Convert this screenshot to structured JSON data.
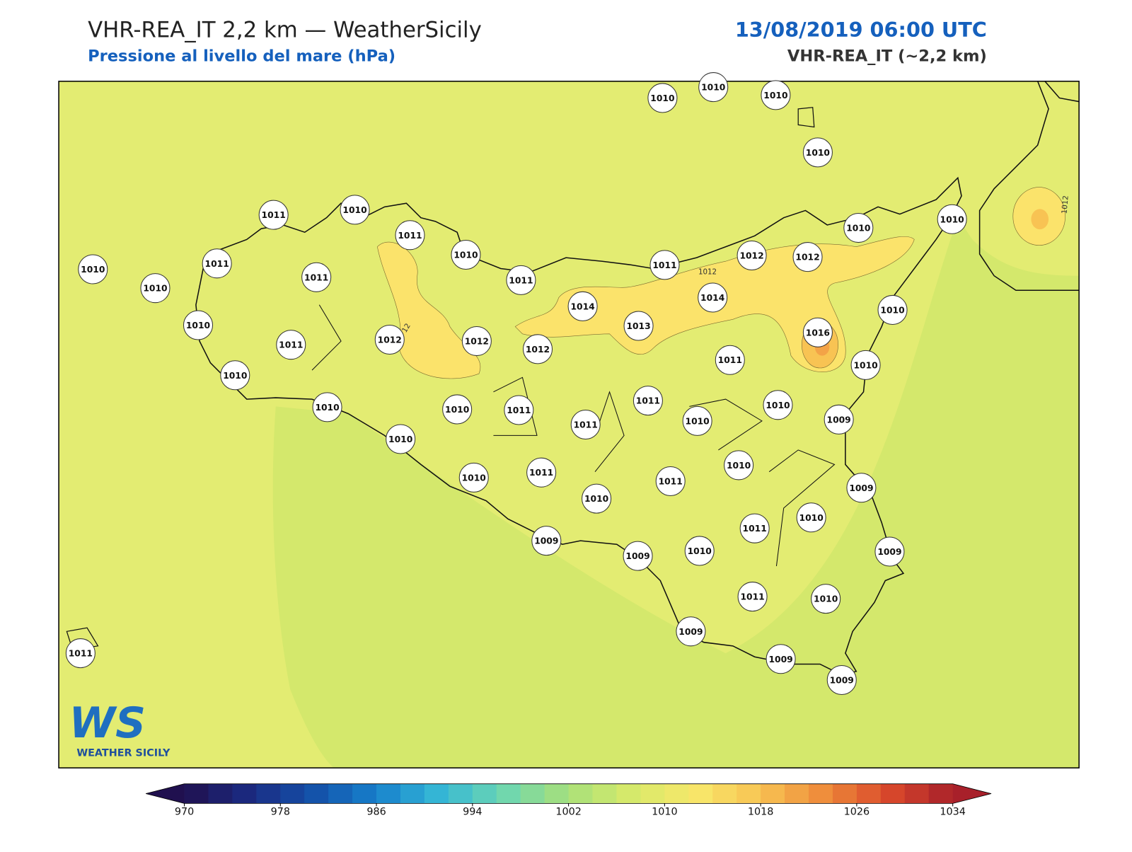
{
  "header": {
    "title": "VHR-REA_IT 2,2 km — WeatherSicily",
    "subtitle": "Pressione al livello del mare (hPa)",
    "date": "13/08/2019 06:00 UTC",
    "model": "VHR-REA_IT (~2,2 km)"
  },
  "stations": {
    "values": [
      1010,
      1010,
      1010,
      1010,
      1011,
      1010,
      1011,
      1010,
      1010,
      1011,
      1011,
      1011,
      1010,
      1010,
      1011,
      1012,
      1012,
      1012,
      1010,
      1014,
      1011,
      1012,
      1012,
      1010,
      1010,
      1014,
      1013,
      1016,
      1010,
      1011,
      1010,
      1010,
      1010,
      1011,
      1011,
      1011,
      1010,
      1010,
      1009,
      1010,
      1010,
      1011,
      1010,
      1011,
      1010,
      1009,
      1011,
      1010,
      1009,
      1009,
      1010,
      1009,
      1011,
      1010,
      1009,
      1009,
      1009,
      1011
    ]
  },
  "contour_labels": [
    "1012",
    "1012",
    "12"
  ],
  "colorbar": {
    "ticks": [
      970,
      978,
      986,
      994,
      1002,
      1010,
      1018,
      1026,
      1034
    ],
    "colors": [
      "#20104f",
      "#1b2a80",
      "#1450a8",
      "#1780cc",
      "#36b8d6",
      "#6dd6b0",
      "#a8e07a",
      "#d8ea6a",
      "#f8e76a",
      "#f8c353",
      "#ee8a3a",
      "#d9492b",
      "#a8202a"
    ]
  },
  "logo": {
    "mark": "WS",
    "name": "WEATHER SICILY"
  }
}
